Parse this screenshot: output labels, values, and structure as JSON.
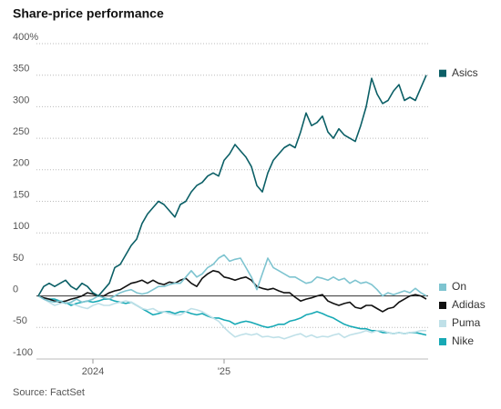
{
  "chart_data": {
    "type": "line",
    "title": "Share-price performance",
    "source": "Source: FactSet",
    "categories": [
      null,
      null,
      null,
      null,
      null,
      null,
      null,
      null,
      null,
      null,
      "2024",
      null,
      null,
      null,
      null,
      null,
      null,
      null,
      null,
      null,
      null,
      null,
      null,
      null,
      null,
      null,
      null,
      null,
      null,
      null,
      null,
      null,
      null,
      null,
      "'25",
      null,
      null,
      null,
      null,
      null,
      null,
      null,
      null,
      null,
      null,
      null,
      null,
      null,
      null,
      null,
      null,
      null,
      null,
      null,
      null,
      null,
      null,
      null,
      null,
      null,
      null,
      null,
      null,
      null,
      null,
      null,
      null,
      null,
      null,
      null,
      null,
      null
    ],
    "ylim": [
      -100,
      400
    ],
    "yticks": [
      {
        "value": 400,
        "label": "400%"
      },
      350,
      300,
      250,
      200,
      150,
      100,
      50,
      0,
      -50,
      -100
    ],
    "grid": true,
    "series": [
      {
        "name": "Asics",
        "color": "#0b5f66",
        "values": [
          0,
          15,
          20,
          15,
          20,
          25,
          15,
          10,
          20,
          15,
          5,
          0,
          10,
          20,
          45,
          50,
          65,
          80,
          90,
          115,
          130,
          140,
          150,
          145,
          135,
          125,
          145,
          150,
          165,
          175,
          180,
          190,
          195,
          190,
          215,
          225,
          240,
          230,
          220,
          205,
          175,
          165,
          195,
          215,
          225,
          235,
          240,
          235,
          260,
          290,
          270,
          275,
          285,
          260,
          250,
          265,
          255,
          250,
          245,
          270,
          300,
          345,
          320,
          305,
          310,
          325,
          335,
          310,
          315,
          310,
          330,
          350
        ]
      },
      {
        "name": "On",
        "color": "#7ec4d0",
        "values": [
          0,
          -5,
          -8,
          -10,
          -8,
          -12,
          -10,
          -5,
          -10,
          -8,
          -5,
          0,
          -3,
          -5,
          0,
          5,
          8,
          10,
          5,
          3,
          5,
          10,
          15,
          15,
          18,
          20,
          20,
          30,
          40,
          30,
          35,
          45,
          50,
          60,
          65,
          55,
          58,
          60,
          45,
          30,
          10,
          35,
          60,
          45,
          40,
          35,
          30,
          30,
          25,
          20,
          22,
          30,
          28,
          25,
          30,
          25,
          28,
          20,
          25,
          20,
          22,
          18,
          10,
          0,
          5,
          2,
          5,
          8,
          5,
          12,
          5,
          0
        ]
      },
      {
        "name": "Adidas",
        "color": "#111111",
        "values": [
          0,
          -3,
          -5,
          -8,
          -10,
          -8,
          -5,
          -3,
          0,
          5,
          3,
          0,
          0,
          5,
          8,
          10,
          15,
          20,
          22,
          25,
          20,
          25,
          20,
          18,
          22,
          20,
          25,
          28,
          20,
          15,
          28,
          35,
          40,
          38,
          30,
          28,
          25,
          28,
          30,
          25,
          15,
          12,
          10,
          12,
          8,
          5,
          5,
          -2,
          -8,
          -5,
          -3,
          0,
          2,
          -8,
          -12,
          -15,
          -12,
          -10,
          -18,
          -20,
          -15,
          -15,
          -20,
          -25,
          -20,
          -18,
          -10,
          -5,
          0,
          2,
          0,
          -5
        ]
      },
      {
        "name": "Puma",
        "color": "#bfe0e8",
        "values": [
          0,
          -5,
          -10,
          -15,
          -12,
          -10,
          -12,
          -15,
          -18,
          -20,
          -15,
          -12,
          -15,
          -15,
          -12,
          -10,
          -8,
          -10,
          -15,
          -20,
          -22,
          -20,
          -25,
          -25,
          -28,
          -30,
          -30,
          -25,
          -20,
          -22,
          -25,
          -30,
          -35,
          -40,
          -50,
          -58,
          -65,
          -62,
          -60,
          -62,
          -60,
          -65,
          -64,
          -66,
          -65,
          -68,
          -65,
          -62,
          -60,
          -65,
          -62,
          -66,
          -64,
          -65,
          -62,
          -60,
          -66,
          -62,
          -60,
          -58,
          -55,
          -58,
          -55,
          -55,
          -58,
          -60,
          -58,
          -60,
          -58,
          -57,
          -55,
          -55
        ]
      },
      {
        "name": "Nike",
        "color": "#17a9b5",
        "values": [
          0,
          -3,
          -5,
          -5,
          -8,
          -10,
          -15,
          -12,
          -10,
          -8,
          -10,
          -8,
          -5,
          -5,
          -8,
          -10,
          -12,
          -10,
          -15,
          -20,
          -25,
          -30,
          -28,
          -25,
          -25,
          -28,
          -25,
          -25,
          -28,
          -30,
          -28,
          -32,
          -35,
          -35,
          -38,
          -40,
          -45,
          -42,
          -40,
          -42,
          -45,
          -48,
          -50,
          -48,
          -45,
          -45,
          -40,
          -38,
          -35,
          -30,
          -28,
          -25,
          -28,
          -32,
          -35,
          -40,
          -45,
          -48,
          -50,
          -52,
          -52,
          -55,
          -55,
          -58,
          -58,
          -60,
          -58,
          -60,
          -58,
          -58,
          -60,
          -62
        ]
      }
    ]
  }
}
